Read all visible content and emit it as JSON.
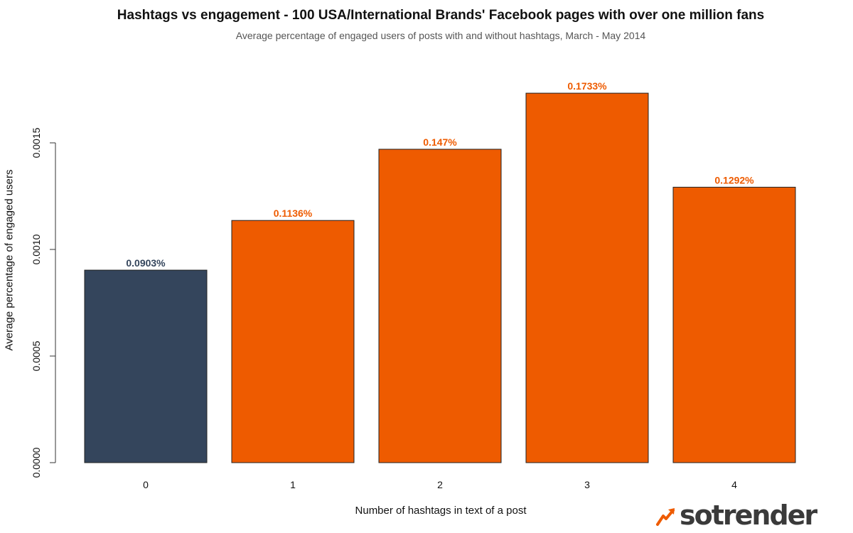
{
  "chart_data": {
    "type": "bar",
    "title": "Hashtags vs engagement - 100 USA/International Brands' Facebook pages with over one million fans",
    "subtitle": "Average percentage of engaged users of posts with and without hashtags, March - May 2014",
    "xlabel": "Number of hashtags in text of a post",
    "ylabel": "Average percentage of engaged users",
    "categories": [
      "0",
      "1",
      "2",
      "3",
      "4"
    ],
    "values": [
      0.000903,
      0.001136,
      0.00147,
      0.001733,
      0.001292
    ],
    "data_labels": [
      "0.0903%",
      "0.1136%",
      "0.147%",
      "0.1733%",
      "0.1292%"
    ],
    "bar_colors": [
      "#34455c",
      "#ee5b00",
      "#ee5b00",
      "#ee5b00",
      "#ee5b00"
    ],
    "ylim": [
      0,
      0.0015
    ],
    "yticks": [
      "0.0000",
      "0.0005",
      "0.0010",
      "0.0015"
    ],
    "grid": false,
    "legend": "none"
  },
  "logo": {
    "text": "sotrender",
    "accent_color": "#ee5b00"
  }
}
